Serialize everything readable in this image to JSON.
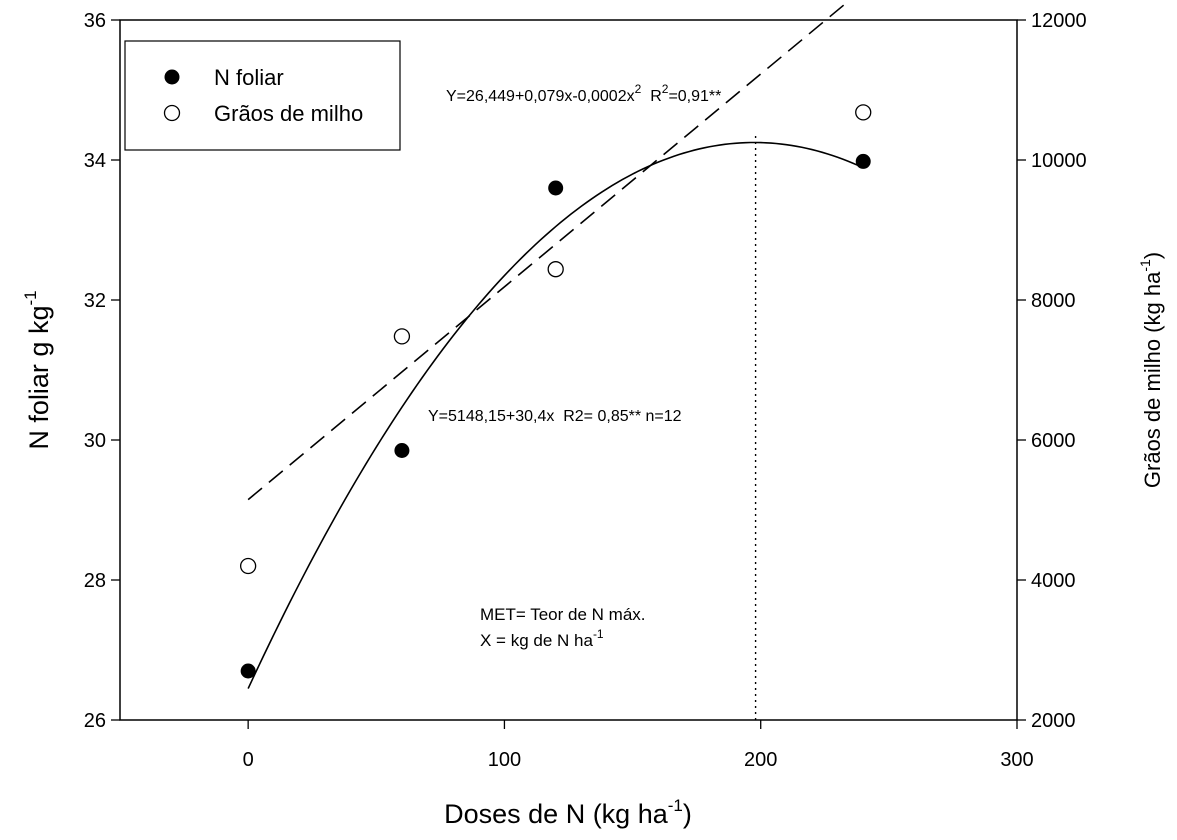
{
  "chart_data": {
    "type": "scatter",
    "xlabel": {
      "main": "Doses de N (kg ha",
      "sup": "-1",
      "close": ")"
    },
    "ylabel_left": {
      "main": "N foliar g kg",
      "sup": "-1"
    },
    "ylabel_right": {
      "main": "Grãos de milho (kg ha",
      "sup": "-1",
      "close": ")"
    },
    "xlim": [
      -50,
      300
    ],
    "ylim_left": [
      26,
      36
    ],
    "ylim_right": [
      2000,
      12000
    ],
    "x_ticks": [
      0,
      100,
      200,
      300
    ],
    "y_left_ticks": [
      26,
      28,
      30,
      32,
      34,
      36
    ],
    "y_right_ticks": [
      2000,
      4000,
      6000,
      8000,
      10000,
      12000
    ],
    "legend_position": "top-left",
    "series": [
      {
        "name": "N foliar",
        "marker": "filled-circle",
        "axis": "left",
        "x": [
          0,
          60,
          120,
          240
        ],
        "y": [
          26.7,
          29.85,
          33.6,
          33.98
        ],
        "fit": {
          "kind": "quadratic",
          "coeffs": [
            26.449,
            0.079,
            -0.0002
          ],
          "x_range": [
            0,
            240
          ],
          "line": "solid"
        }
      },
      {
        "name": "Grãos de milho",
        "marker": "open-circle",
        "axis": "right",
        "x": [
          0,
          60,
          120,
          240
        ],
        "y": [
          4200,
          7480,
          8440,
          10680
        ],
        "fit": {
          "kind": "linear",
          "coeffs": [
            5148.15,
            30.4
          ],
          "x_range": [
            0,
            240
          ],
          "line": "dashed"
        }
      }
    ],
    "reference_line": {
      "x": 198,
      "from_y": 26,
      "to_y": 34.4,
      "style": "dotted"
    },
    "annotations": {
      "quadratic_eq": {
        "prefix": "Y=26,449+0,079x-0,0002x",
        "sup1": "2",
        "mid": "  R",
        "sup2": "2",
        "suffix": "=0,91**"
      },
      "linear_eq": "Y=5148,15+30,4x  R2= 0,85** n=12",
      "met_line1": "MET= Teor de N máx.",
      "met_line2": {
        "main": "X = kg de N ha",
        "sup": "-1"
      }
    }
  }
}
